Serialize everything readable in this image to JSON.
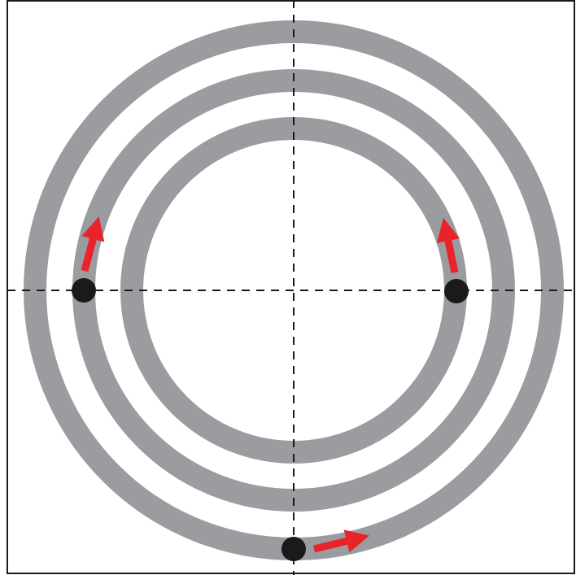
{
  "diagram": {
    "description_type": "concentric-rings-with-markers",
    "colors": {
      "background": "#ffffff",
      "frame": "#1a1a1a",
      "ring": "#9b9c9f",
      "axis_line": "#1a1a1a",
      "marker": "#1a1a1a",
      "arrow": "#e8232a"
    },
    "axes": [
      {
        "name": "horizontal-axis",
        "style": "dashed"
      },
      {
        "name": "vertical-axis",
        "style": "dashed"
      }
    ],
    "rings": [
      {
        "name": "outer-ring"
      },
      {
        "name": "middle-ring"
      },
      {
        "name": "inner-ring"
      }
    ],
    "markers": [
      {
        "name": "marker-bottom",
        "ring": "outer-ring",
        "position": "bottom"
      },
      {
        "name": "marker-left",
        "ring": "middle-ring",
        "position": "left"
      },
      {
        "name": "marker-right",
        "ring": "inner-ring",
        "position": "right"
      }
    ],
    "arrows": [
      {
        "name": "arrow-bottom-right",
        "from_marker": "marker-bottom",
        "direction": "right"
      },
      {
        "name": "arrow-left-up",
        "from_marker": "marker-left",
        "direction": "up"
      },
      {
        "name": "arrow-right-up",
        "from_marker": "marker-right",
        "direction": "up"
      }
    ]
  }
}
